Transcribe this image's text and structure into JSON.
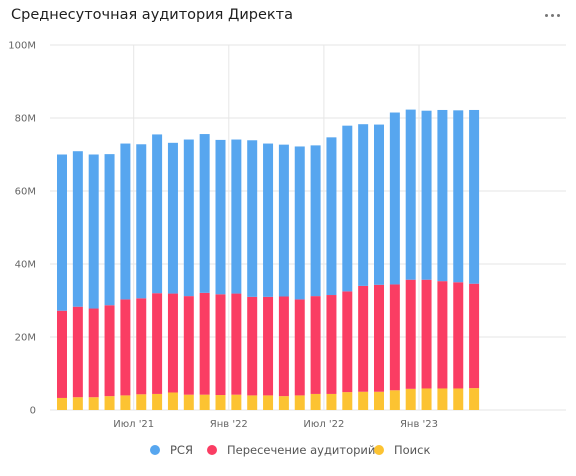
{
  "title": "Среднесуточная аудитория Директа",
  "menu_icon": "more-horizontal-icon",
  "chart_data": {
    "type": "bar",
    "stacked": true,
    "y_ticks": [
      "0",
      "20M",
      "40M",
      "60M",
      "80M",
      "100M"
    ],
    "y_tick_values": [
      0,
      20,
      40,
      60,
      80,
      100
    ],
    "ylim": [
      0,
      100
    ],
    "x_ticks": [
      {
        "label": "Июл '21",
        "index": 2
      },
      {
        "label": "Янв '22",
        "index": 8
      },
      {
        "label": "Июл '22",
        "index": 14
      },
      {
        "label": "Янв '23",
        "index": 20
      }
    ],
    "x_gridlines_at_index": [
      2,
      8,
      14,
      20
    ],
    "grid": true,
    "legend_position": "bottom",
    "categories": [
      "2021-05",
      "2021-06",
      "2021-07",
      "2021-08",
      "2021-09",
      "2021-10",
      "2021-11",
      "2021-12",
      "2022-01",
      "2022-02",
      "2022-03",
      "2022-04",
      "2022-05",
      "2022-06",
      "2022-07",
      "2022-08",
      "2022-09",
      "2022-10",
      "2022-11",
      "2022-12",
      "2023-01",
      "2023-02",
      "2023-03",
      "2023-04",
      "2023-05",
      "2023-06",
      "2023-07"
    ],
    "series": [
      {
        "name": "Поиск",
        "color": "#fcc332",
        "values": [
          3.3,
          3.5,
          3.5,
          3.8,
          4.0,
          4.3,
          4.4,
          4.8,
          4.2,
          4.2,
          4.1,
          4.2,
          4.0,
          4.0,
          3.8,
          4.0,
          4.4,
          4.4,
          4.9,
          5.0,
          5.0,
          5.4,
          5.8,
          5.9,
          5.9,
          5.9,
          6.0
        ]
      },
      {
        "name": "Пересечение аудиторий",
        "color": "#fa3d63",
        "values": [
          23.9,
          24.8,
          24.3,
          24.9,
          26.3,
          26.3,
          27.6,
          27.1,
          27.0,
          27.9,
          27.6,
          27.7,
          27.0,
          27.0,
          27.3,
          26.3,
          26.8,
          27.1,
          27.6,
          29.0,
          29.3,
          29.0,
          29.9,
          29.8,
          29.4,
          29.1,
          28.6
        ]
      },
      {
        "name": "РСЯ",
        "color": "#57a6ef",
        "values": [
          42.8,
          42.6,
          42.2,
          41.4,
          42.7,
          42.2,
          43.5,
          41.3,
          42.9,
          43.5,
          42.3,
          42.2,
          42.9,
          42.0,
          41.6,
          41.9,
          41.3,
          43.2,
          45.4,
          44.3,
          43.9,
          47.1,
          46.6,
          46.3,
          46.9,
          47.1,
          47.6
        ]
      }
    ]
  }
}
